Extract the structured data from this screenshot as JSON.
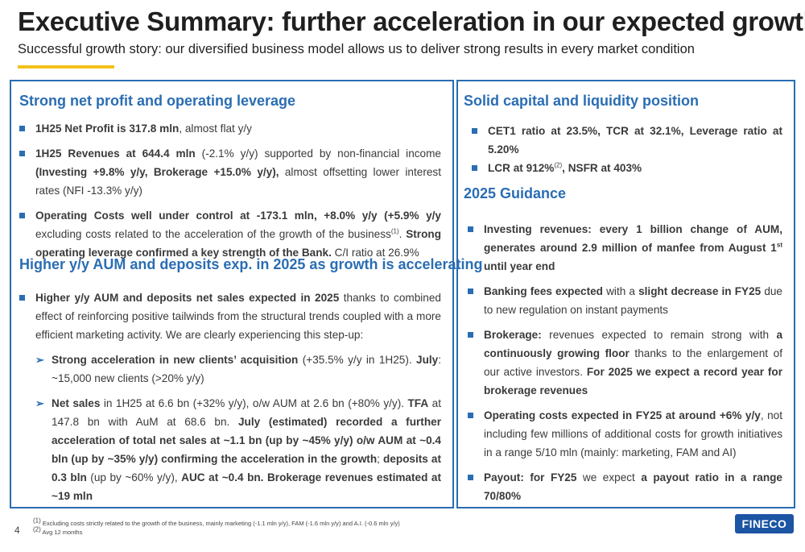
{
  "header": {
    "title": "Executive Summary: further acceleration in our expected growth",
    "subtitle": "Successful growth story: our diversified business model allows us to deliver strong results in every market condition"
  },
  "left": {
    "s1_title": "Strong net profit and operating leverage",
    "b1_bold": "1H25 Net Profit is 317.8 mln",
    "b1_rest": ", almost flat y/y",
    "b2_bold": "1H25 Revenues at 644.4 mln",
    "b2_text": " (-2.1% y/y) supported by non-financial income ",
    "b2_bold2": "(Investing +9.8% y/y, Brokerage +15.0% y/y),",
    "b2_text2": " almost offsetting lower interest rates (NFI -13.3% y/y)",
    "b3_bold": "Operating Costs well under control at -173.1 mln, +8.0% y/y (+5.9% y/y",
    "b3_text": " excluding costs related to the acceleration of the growth of the business",
    "b3_sup": "(1)",
    "b3_text2": ". ",
    "b3_bold2": "Strong operating leverage confirmed a key strength of the Bank.",
    "b3_text3": " C/I ratio at 26.9%",
    "s2_title": "Higher y/y AUM and deposits exp. in 2025 as growth is accelerating",
    "b4_bold": "Higher y/y AUM and deposits net sales expected in 2025",
    "b4_text": " thanks to combined effect of reinforcing positive tailwinds from the structural trends coupled with a more efficient marketing activity. We are clearly experiencing this step-up:",
    "arrow_symbol": "➢",
    "a1_bold": "Strong acceleration in new clients’ acquisition",
    "a1_text": " (+35.5% y/y in 1H25). ",
    "a1_bold2": "July",
    "a1_text2": ": ~15,000 new clients (>20% y/y)",
    "a2_bold": "Net sales",
    "a2_text": " in 1H25 at 6.6 bn (+32% y/y), o/w AUM at 2.6 bn (+80% y/y). ",
    "a2_bold2": "TFA",
    "a2_text2": " at 147.8 bn with AuM at 68.6 bn. ",
    "a2_bold3": "July (estimated) recorded a further acceleration of total net sales at ~1.1 bn (up by ~45% y/y) o/w AUM at ~0.4 bln (up by ~35% y/y) confirming the acceleration in the growth",
    "a2_text3": "; ",
    "a2_bold4": "deposits at 0.3 bln",
    "a2_text4": " (up by ~60% y/y), ",
    "a2_bold5": "AUC at ~0.4 bn. Brokerage revenues estimated at ~19 mln"
  },
  "right": {
    "s1_title": "Solid capital and liquidity position",
    "c1_bold": "CET1 ratio at 23.5%, TCR at 32.1%, Leverage ratio at 5.20%",
    "c2_bold": "LCR at 912%",
    "c2_sup": "(2)",
    "c2_bold2": ", NSFR at 403%",
    "s2_title": "2025 Guidance",
    "g1_bold": "Investing revenues: every 1 billion change of AUM, generates around 2.9 million of manfee from August 1",
    "g1_sup": "st",
    "g1_bold2": " until year end",
    "g2_bold": "Banking fees expected",
    "g2_text": " with a ",
    "g2_bold2": "slight decrease in FY25",
    "g2_text2": " due to new regulation on instant payments",
    "g3_bold": "Brokerage:",
    "g3_text": " revenues expected to remain strong with ",
    "g3_bold2": "a continuously growing floor",
    "g3_text2": " thanks to the enlargement of our active investors. ",
    "g3_bold3": "For 2025 we expect a record year for brokerage revenues",
    "g4_bold": "Operating costs expected in FY25 at around +6% y/y",
    "g4_text": ", not including few millions of additional costs for growth initiatives in a range 5/10 mln (mainly: marketing, FAM and AI)",
    "g5_bold": "Payout: for FY25",
    "g5_text": " we expect ",
    "g5_bold2": "a payout ratio in a range 70/80%"
  },
  "footer": {
    "page_number": "4",
    "fn1_mark": "(1)",
    "fn1": " Excluding costs strictly related to the growth of the business, mainly marketing (-1.1 mln y/y), FAM (-1.6 mln y/y) and A.I. (-0.6 mln y/y)",
    "fn2_mark": "(2)",
    "fn2": " Avg 12 months",
    "logo": "FINECO"
  },
  "colors": {
    "accent_blue": "#2a6db3",
    "accent_yellow": "#f2c21b",
    "logo_blue": "#1b55a3"
  }
}
